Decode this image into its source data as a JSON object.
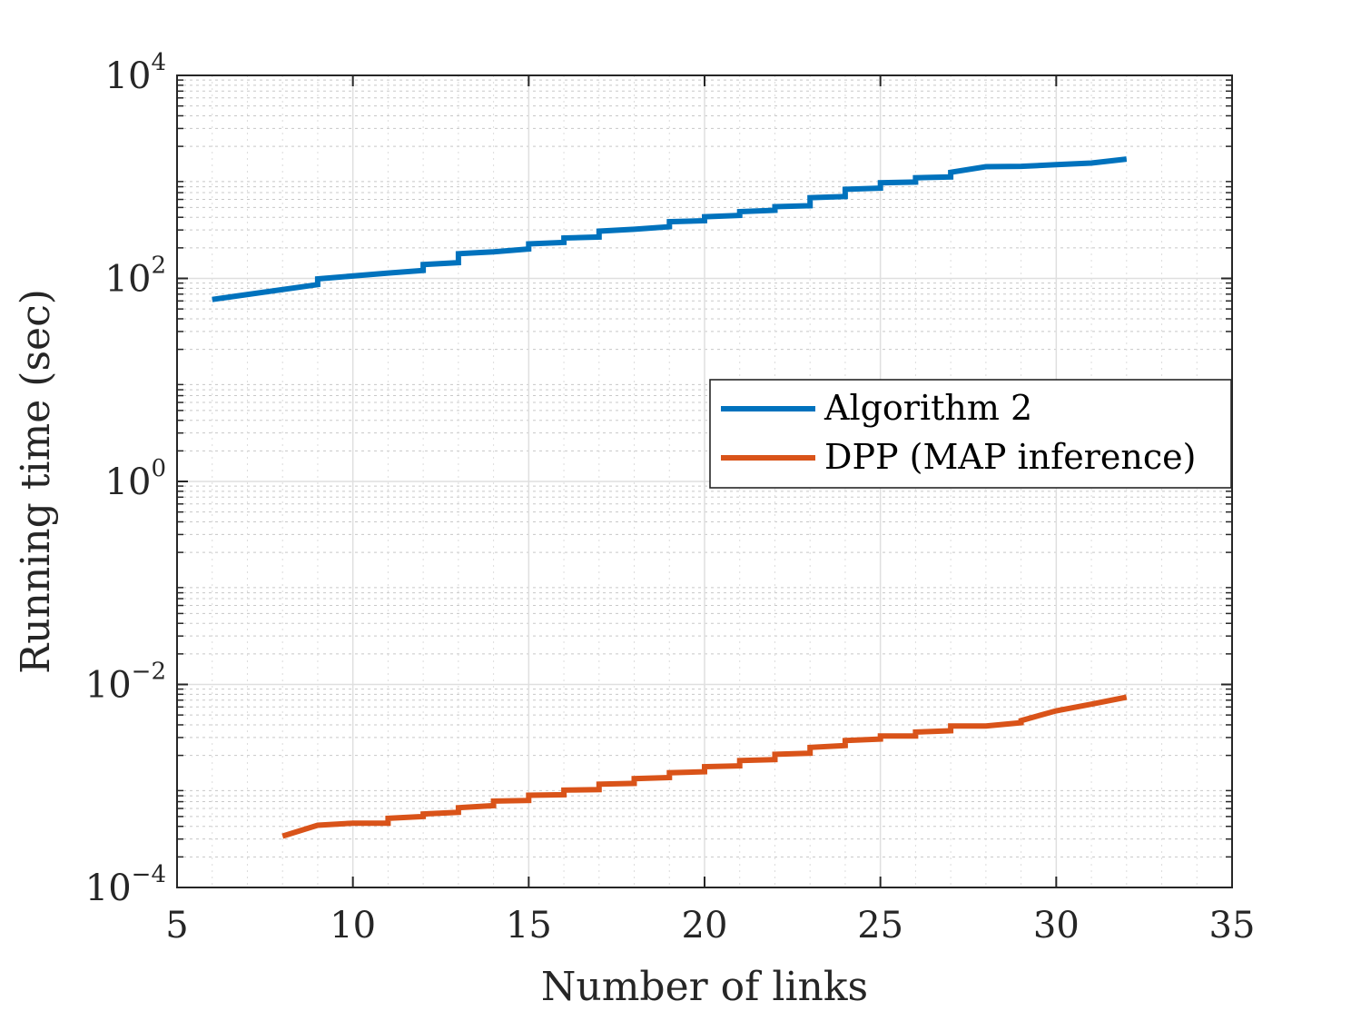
{
  "chart_data": {
    "type": "line",
    "title": "",
    "xlabel": "Number of links",
    "ylabel": "Running time (sec)",
    "xlim": [
      5,
      35
    ],
    "ylim": [
      0.0001,
      10000
    ],
    "yscale": "log",
    "grid": true,
    "x_ticks": [
      5,
      10,
      15,
      20,
      25,
      30,
      35
    ],
    "x_tick_labels": [
      "5",
      "10",
      "15",
      "20",
      "25",
      "30",
      "35"
    ],
    "y_ticks": [
      0.0001,
      0.01,
      1,
      100,
      10000
    ],
    "y_tick_labels": [
      {
        "base": "10",
        "exp": "−4"
      },
      {
        "base": "10",
        "exp": "−2"
      },
      {
        "base": "10",
        "exp": "0"
      },
      {
        "base": "10",
        "exp": "2"
      },
      {
        "base": "10",
        "exp": "4"
      }
    ],
    "legend_position": "center-right",
    "series": [
      {
        "name": "Algorithm 2",
        "color": "#0072bd",
        "x": [
          6,
          9,
          9,
          11,
          12,
          12,
          13,
          13,
          14,
          15,
          15,
          16,
          16,
          17,
          17,
          18,
          19,
          19,
          20,
          20,
          21,
          21,
          22,
          22,
          23,
          23,
          24,
          24,
          25,
          25,
          26,
          26,
          27,
          27,
          28,
          29,
          30,
          31,
          32
        ],
        "y": [
          62,
          87,
          99,
          113,
          120,
          137,
          143,
          175,
          183,
          195,
          219,
          226,
          250,
          256,
          292,
          305,
          323,
          362,
          370,
          405,
          418,
          455,
          469,
          509,
          520,
          624,
          640,
          755,
          775,
          875,
          890,
          980,
          998,
          1110,
          1260,
          1270,
          1320,
          1370,
          1500
        ]
      },
      {
        "name": "DPP (MAP inference)",
        "color": "#d95319",
        "x": [
          8,
          9,
          10,
          11,
          11,
          12,
          12,
          13,
          13,
          14,
          14,
          15,
          15,
          16,
          16,
          17,
          17,
          18,
          18,
          19,
          19,
          20,
          20,
          21,
          21,
          22,
          22,
          23,
          23,
          24,
          24,
          25,
          25,
          26,
          26,
          27,
          27,
          28,
          29,
          29,
          30,
          31,
          32
        ],
        "y": [
          0.00032,
          0.00041,
          0.00043,
          0.00043,
          0.00048,
          0.0005,
          0.00053,
          0.00055,
          0.00061,
          0.00064,
          0.00071,
          0.00072,
          0.00081,
          0.00082,
          0.00091,
          0.00092,
          0.00104,
          0.00106,
          0.00118,
          0.00121,
          0.00135,
          0.00138,
          0.00155,
          0.00158,
          0.00178,
          0.00182,
          0.00205,
          0.0021,
          0.0024,
          0.0025,
          0.0028,
          0.0029,
          0.0031,
          0.0031,
          0.0034,
          0.0035,
          0.0039,
          0.0039,
          0.0042,
          0.0044,
          0.0055,
          0.0064,
          0.0075
        ]
      }
    ]
  }
}
